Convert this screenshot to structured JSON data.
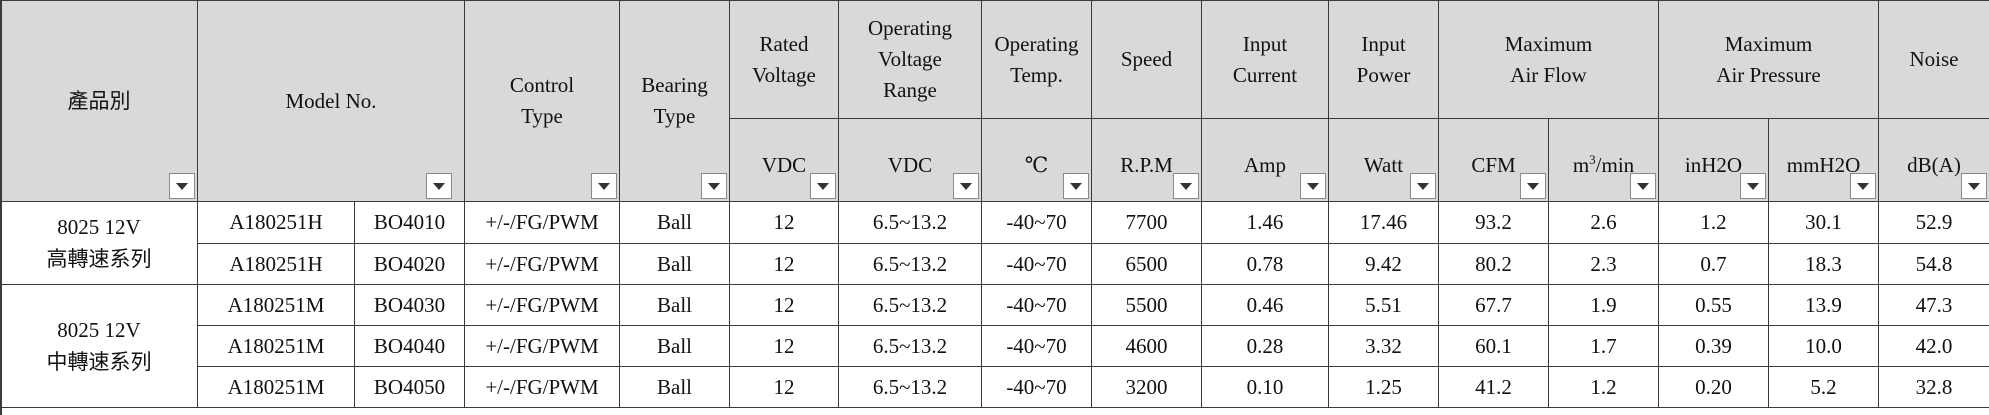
{
  "header": {
    "product": "產品別",
    "model": "Model No.",
    "control": [
      "Control",
      "Type"
    ],
    "bearing": [
      "Bearing",
      "Type"
    ],
    "rated_voltage": [
      "Rated",
      "Voltage"
    ],
    "operating_voltage": [
      "Operating",
      "Voltage",
      "Range"
    ],
    "operating_temp": [
      "Operating",
      "Temp."
    ],
    "speed": "Speed",
    "input_current": [
      "Input",
      "Current"
    ],
    "input_power": [
      "Input",
      "Power"
    ],
    "max_air_flow": [
      "Maximum",
      "Air Flow"
    ],
    "max_air_pressure": [
      "Maximum",
      "Air Pressure"
    ],
    "noise": "Noise"
  },
  "units": {
    "rated_voltage": "VDC",
    "operating_voltage": "VDC",
    "operating_temp": "℃",
    "speed": "R.P.M",
    "input_current": "Amp",
    "input_power": "Watt",
    "cfm": "CFM",
    "m3_base": "m",
    "m3_sup": "3",
    "m3_tail": "/min",
    "inh2o": "inH2O",
    "mmh2o": "mmH2O",
    "noise": "dB(A)"
  },
  "groups": [
    {
      "line1": "8025 12V",
      "line2": "高轉速系列"
    },
    {
      "line1": "8025 12V",
      "line2": "中轉速系列"
    }
  ],
  "rows": [
    [
      "A180251H",
      "BO4010",
      "+/-/FG/PWM",
      "Ball",
      "12",
      "6.5~13.2",
      "-40~70",
      "7700",
      "1.46",
      "17.46",
      "93.2",
      "2.6",
      "1.2",
      "30.1",
      "52.9"
    ],
    [
      "A180251H",
      "BO4020",
      "+/-/FG/PWM",
      "Ball",
      "12",
      "6.5~13.2",
      "-40~70",
      "6500",
      "0.78",
      "9.42",
      "80.2",
      "2.3",
      "0.7",
      "18.3",
      "54.8"
    ],
    [
      "A180251M",
      "BO4030",
      "+/-/FG/PWM",
      "Ball",
      "12",
      "6.5~13.2",
      "-40~70",
      "5500",
      "0.46",
      "5.51",
      "67.7",
      "1.9",
      "0.55",
      "13.9",
      "47.3"
    ],
    [
      "A180251M",
      "BO4040",
      "+/-/FG/PWM",
      "Ball",
      "12",
      "6.5~13.2",
      "-40~70",
      "4600",
      "0.28",
      "3.32",
      "60.1",
      "1.7",
      "0.39",
      "10.0",
      "42.0"
    ],
    [
      "A180251M",
      "BO4050",
      "+/-/FG/PWM",
      "Ball",
      "12",
      "6.5~13.2",
      "-40~70",
      "3200",
      "0.10",
      "1.25",
      "41.2",
      "1.2",
      "0.20",
      "5.2",
      "32.8"
    ]
  ]
}
